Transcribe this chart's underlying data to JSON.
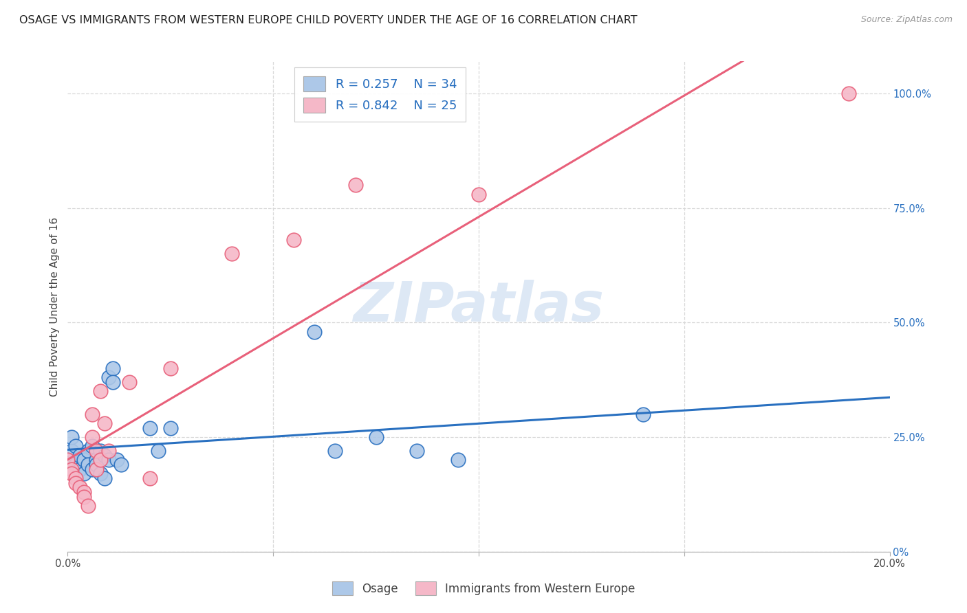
{
  "title": "OSAGE VS IMMIGRANTS FROM WESTERN EUROPE CHILD POVERTY UNDER THE AGE OF 16 CORRELATION CHART",
  "source": "Source: ZipAtlas.com",
  "ylabel": "Child Poverty Under the Age of 16",
  "legend_labels": [
    "Osage",
    "Immigrants from Western Europe"
  ],
  "blue_R": 0.257,
  "blue_N": 34,
  "pink_R": 0.842,
  "pink_N": 25,
  "blue_color": "#adc8e8",
  "pink_color": "#f5b8c8",
  "blue_line_color": "#2970c0",
  "pink_line_color": "#e8607a",
  "watermark": "ZIPatlas",
  "blue_scatter_x": [
    0.0,
    0.001,
    0.001,
    0.002,
    0.002,
    0.003,
    0.003,
    0.004,
    0.004,
    0.005,
    0.005,
    0.006,
    0.006,
    0.007,
    0.007,
    0.008,
    0.008,
    0.009,
    0.009,
    0.01,
    0.01,
    0.011,
    0.011,
    0.012,
    0.013,
    0.02,
    0.022,
    0.025,
    0.06,
    0.065,
    0.075,
    0.085,
    0.095,
    0.14
  ],
  "blue_scatter_y": [
    20,
    22,
    25,
    19,
    23,
    18,
    21,
    20,
    17,
    22,
    19,
    18,
    23,
    20,
    19,
    17,
    22,
    21,
    16,
    20,
    38,
    40,
    37,
    20,
    19,
    27,
    22,
    27,
    48,
    22,
    25,
    22,
    20,
    30
  ],
  "pink_scatter_x": [
    0.0,
    0.001,
    0.001,
    0.002,
    0.002,
    0.003,
    0.004,
    0.004,
    0.005,
    0.006,
    0.006,
    0.007,
    0.007,
    0.008,
    0.008,
    0.009,
    0.01,
    0.015,
    0.02,
    0.025,
    0.04,
    0.055,
    0.07,
    0.1,
    0.19
  ],
  "pink_scatter_y": [
    20,
    18,
    17,
    16,
    15,
    14,
    13,
    12,
    10,
    25,
    30,
    22,
    18,
    35,
    20,
    28,
    22,
    37,
    16,
    40,
    65,
    68,
    80,
    78,
    100
  ],
  "xlim": [
    0,
    0.2
  ],
  "ylim": [
    0,
    107
  ],
  "right_ytick_vals": [
    0,
    25,
    50,
    75,
    100
  ],
  "right_ytick_labels": [
    "0%",
    "25.0%",
    "50.0%",
    "75.0%",
    "100.0%"
  ],
  "xtick_positions": [
    0.0,
    0.05,
    0.1,
    0.15,
    0.2
  ],
  "xtick_labels": [
    "0.0%",
    "",
    "",
    "",
    "20.0%"
  ],
  "background_color": "#ffffff",
  "grid_color": "#d8d8d8",
  "title_fontsize": 11.5,
  "axis_label_fontsize": 11,
  "tick_fontsize": 10.5
}
